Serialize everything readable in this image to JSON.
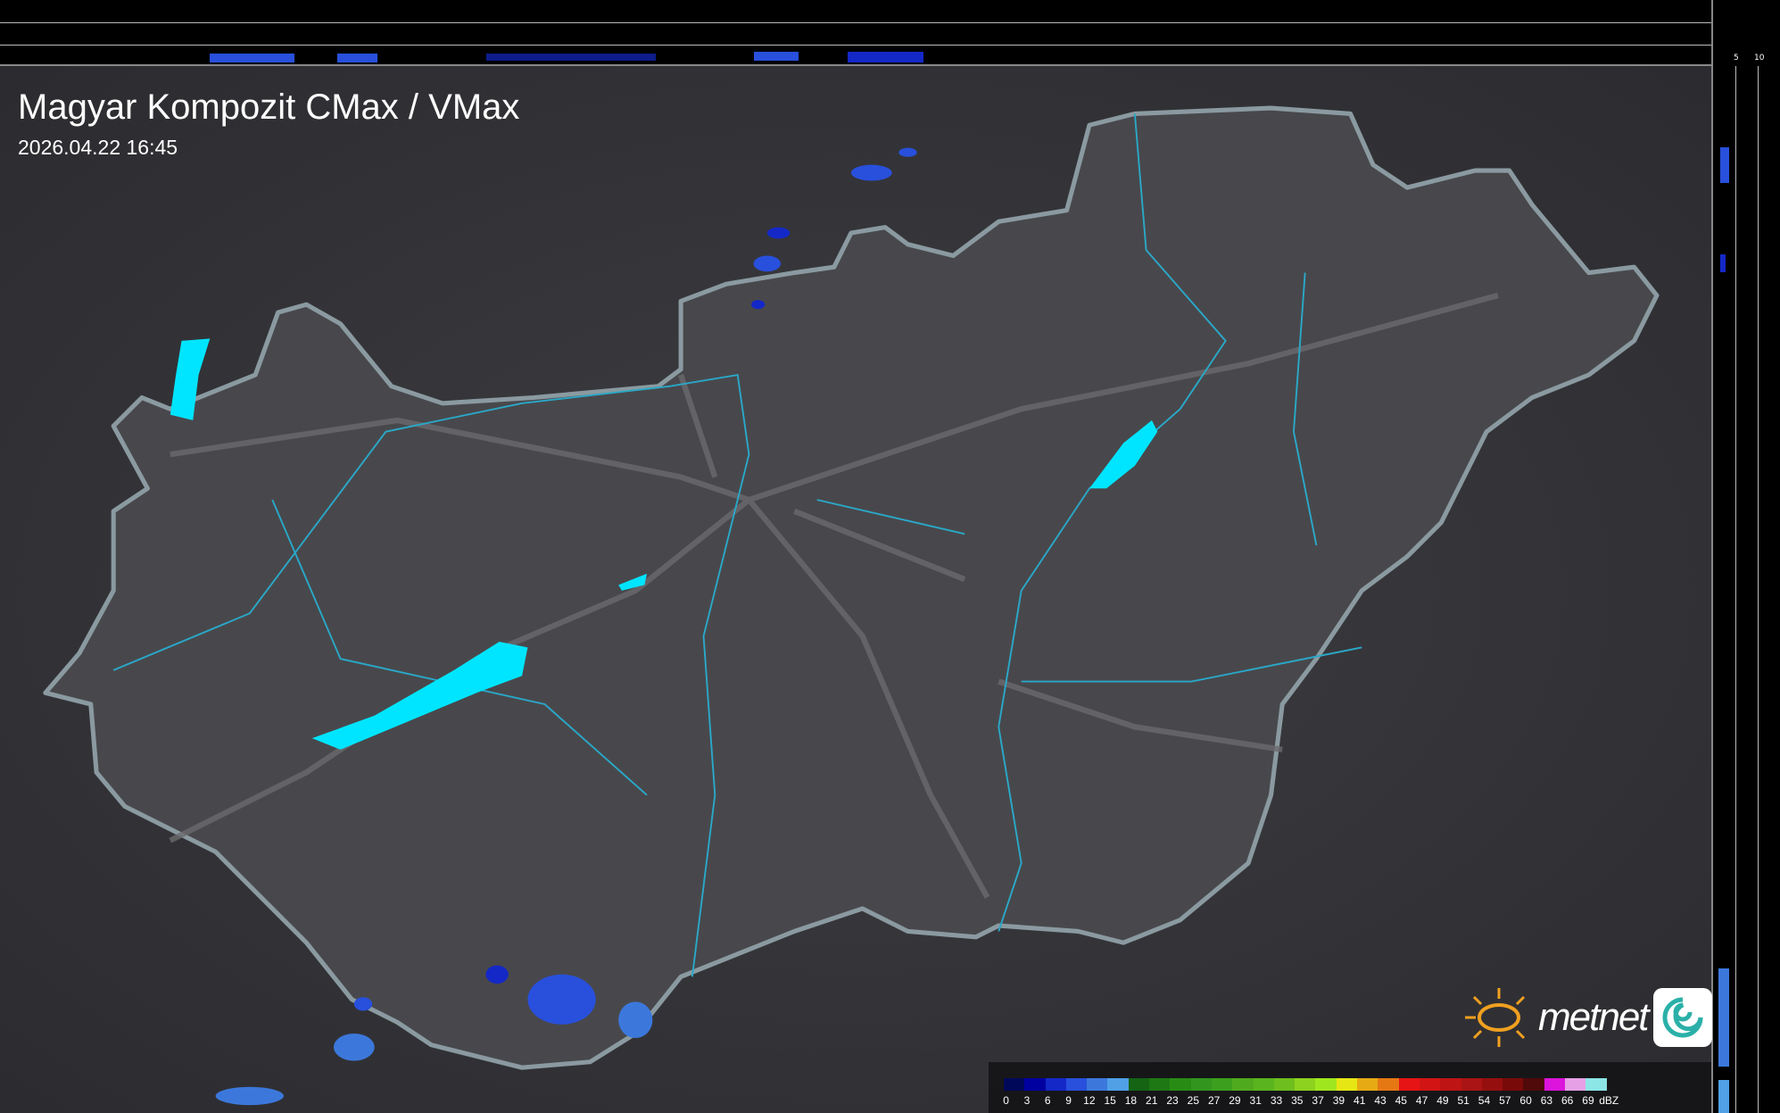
{
  "header": {
    "title": "Magyar Kompozit CMax / VMax",
    "timestamp": "2026.04.22 16:45"
  },
  "profile_axes": {
    "top_ticks": [
      "10",
      "5"
    ],
    "right_ticks": [
      "5",
      "10"
    ]
  },
  "legend": {
    "unit": "dBZ",
    "labels": [
      "0",
      "3",
      "6",
      "9",
      "12",
      "15",
      "18",
      "21",
      "23",
      "25",
      "27",
      "29",
      "31",
      "33",
      "35",
      "37",
      "39",
      "41",
      "43",
      "45",
      "47",
      "49",
      "51",
      "54",
      "57",
      "60",
      "63",
      "66",
      "69"
    ],
    "colors": [
      "#00085a",
      "#0000a0",
      "#1428c8",
      "#2850dc",
      "#3c78dc",
      "#50a0e6",
      "#146414",
      "#1e7814",
      "#288c14",
      "#32961e",
      "#3ca01e",
      "#50aa1e",
      "#5ab41e",
      "#6ebe1e",
      "#8cd21e",
      "#a0e61e",
      "#e6e614",
      "#e6aa14",
      "#e67814",
      "#e61414",
      "#d21414",
      "#be1414",
      "#aa1414",
      "#960f0f",
      "#780a0a",
      "#500a0a",
      "#dc14dc",
      "#e6a0e6",
      "#8ce6e6"
    ]
  },
  "logo": {
    "text": "metnet"
  },
  "colors": {
    "background": "#3a3a3e",
    "country": "#48484c",
    "border": "#8a9aa0",
    "lakes": "#00e5ff",
    "rivers": "#2aa8c8",
    "roads": "#6a6a6e"
  }
}
